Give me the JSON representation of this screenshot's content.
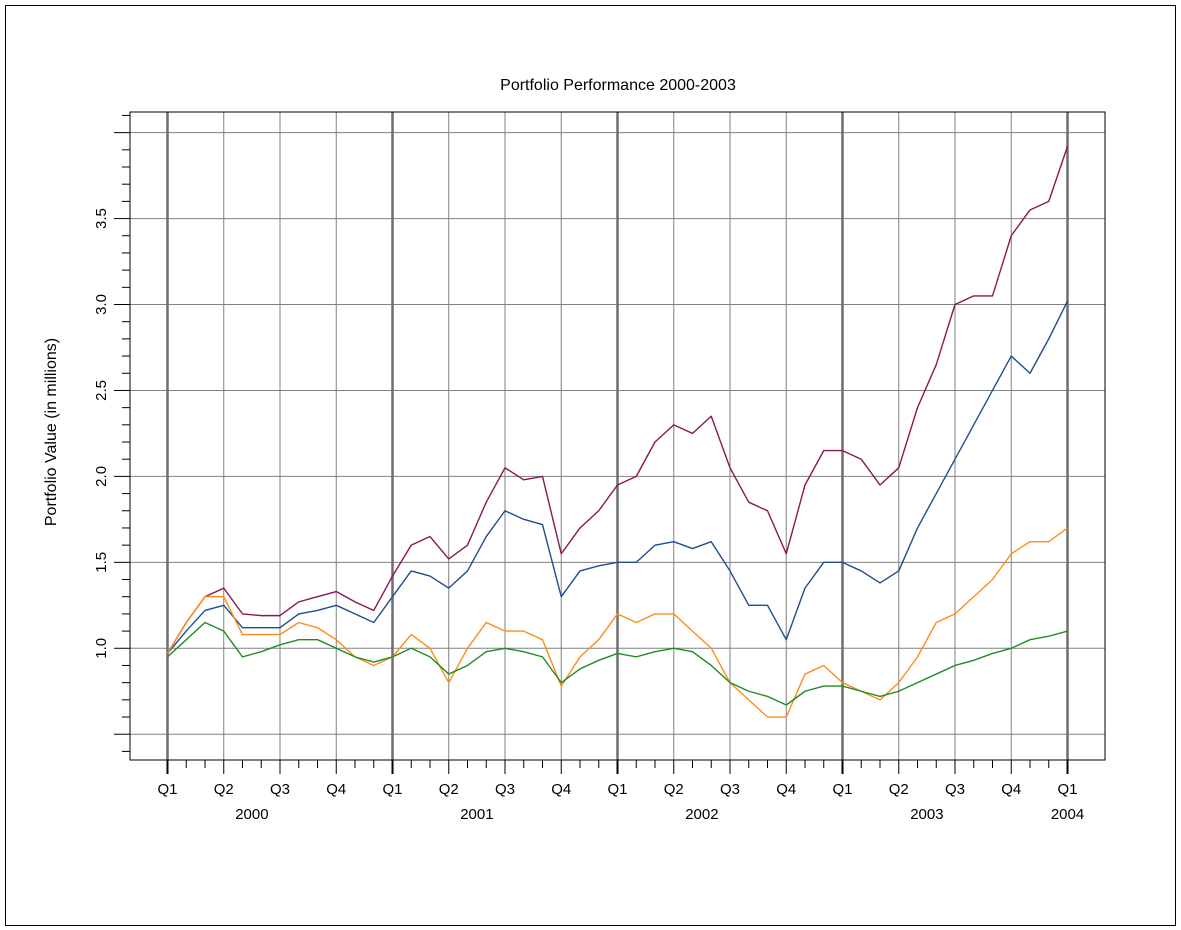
{
  "chart_data": {
    "type": "line",
    "title": "Portfolio Performance 2000-2003",
    "ylabel": "Portfolio Value (in millions)",
    "x": [
      0,
      1,
      2,
      3,
      4,
      5,
      6,
      7,
      8,
      9,
      10,
      11,
      12,
      13,
      14,
      15,
      16,
      17,
      18,
      19,
      20,
      21,
      22,
      23,
      24,
      25,
      26,
      27,
      28,
      29,
      30,
      31,
      32,
      33,
      34,
      35,
      36,
      37,
      38,
      39,
      40,
      41,
      42,
      43,
      44,
      45,
      46,
      47,
      48
    ],
    "xlim": [
      -2,
      50
    ],
    "xticks": [
      {
        "value": 0,
        "label": "Q1"
      },
      {
        "value": 3,
        "label": "Q2"
      },
      {
        "value": 6,
        "label": "Q3"
      },
      {
        "value": 9,
        "label": "Q4"
      },
      {
        "value": 12,
        "label": "Q1"
      },
      {
        "value": 15,
        "label": "Q2"
      },
      {
        "value": 18,
        "label": "Q3"
      },
      {
        "value": 21,
        "label": "Q4"
      },
      {
        "value": 24,
        "label": "Q1"
      },
      {
        "value": 27,
        "label": "Q2"
      },
      {
        "value": 30,
        "label": "Q3"
      },
      {
        "value": 33,
        "label": "Q4"
      },
      {
        "value": 36,
        "label": "Q1"
      },
      {
        "value": 39,
        "label": "Q2"
      },
      {
        "value": 42,
        "label": "Q3"
      },
      {
        "value": 45,
        "label": "Q4"
      },
      {
        "value": 48,
        "label": "Q1"
      }
    ],
    "year_labels": [
      "2000",
      "2001",
      "2002",
      "2003",
      "2004"
    ],
    "xminorticks": [
      1,
      2,
      4,
      5,
      7,
      8,
      10,
      11,
      13,
      14,
      16,
      17,
      19,
      20,
      22,
      23,
      25,
      26,
      28,
      29,
      31,
      32,
      34,
      35,
      37,
      38,
      40,
      41,
      43,
      44,
      46,
      47
    ],
    "ylim": [
      0.35,
      4.12
    ],
    "yticks": [
      {
        "value": 0.5,
        "label": null
      },
      {
        "value": 1,
        "label": "1.0"
      },
      {
        "value": 1.5,
        "label": "1.5"
      },
      {
        "value": 2,
        "label": "2.0"
      },
      {
        "value": 2.5,
        "label": "2.5"
      },
      {
        "value": 3,
        "label": "3.0"
      },
      {
        "value": 3.5,
        "label": "3.5"
      },
      {
        "value": 4,
        "label": null
      }
    ],
    "yminorticks": [
      0.4,
      0.6,
      0.7,
      0.8,
      0.9,
      1.1,
      1.2,
      1.3,
      1.4,
      1.6,
      1.7,
      1.8,
      1.9,
      2.1,
      2.2,
      2.3,
      2.4,
      2.6,
      2.7,
      2.8,
      2.9,
      3.1,
      3.2,
      3.3,
      3.4,
      3.6,
      3.7,
      3.8,
      3.9,
      4.1
    ],
    "grid": true,
    "series": [
      {
        "color": "#8b1650",
        "values": [
          0.97,
          1.15,
          1.3,
          1.35,
          1.2,
          1.19,
          1.19,
          1.27,
          1.3,
          1.33,
          1.27,
          1.22,
          1.42,
          1.6,
          1.65,
          1.52,
          1.6,
          1.85,
          2.05,
          1.98,
          2.0,
          1.55,
          1.7,
          1.8,
          1.95,
          2.0,
          2.2,
          2.3,
          2.25,
          2.35,
          2.05,
          1.85,
          1.8,
          1.55,
          1.95,
          2.15,
          2.15,
          2.1,
          1.95,
          2.05,
          2.4,
          2.65,
          3.0,
          3.05,
          3.05,
          3.4,
          3.55,
          3.6,
          3.92
        ]
      },
      {
        "color": "#1f4e8c",
        "values": [
          0.97,
          1.1,
          1.22,
          1.25,
          1.12,
          1.12,
          1.12,
          1.2,
          1.22,
          1.25,
          1.2,
          1.15,
          1.3,
          1.45,
          1.42,
          1.35,
          1.45,
          1.65,
          1.8,
          1.75,
          1.72,
          1.3,
          1.45,
          1.48,
          1.5,
          1.5,
          1.6,
          1.62,
          1.58,
          1.62,
          1.45,
          1.25,
          1.25,
          1.05,
          1.35,
          1.5,
          1.5,
          1.45,
          1.38,
          1.45,
          1.7,
          1.9,
          2.1,
          2.3,
          2.5,
          2.7,
          2.6,
          2.8,
          3.02
        ]
      },
      {
        "color": "#ff8c1a",
        "values": [
          0.97,
          1.15,
          1.3,
          1.3,
          1.08,
          1.08,
          1.08,
          1.15,
          1.12,
          1.05,
          0.95,
          0.9,
          0.95,
          1.08,
          1.0,
          0.8,
          1.0,
          1.15,
          1.1,
          1.1,
          1.05,
          0.78,
          0.95,
          1.05,
          1.2,
          1.15,
          1.2,
          1.2,
          1.1,
          1.0,
          0.8,
          0.7,
          0.6,
          0.6,
          0.85,
          0.9,
          0.8,
          0.75,
          0.7,
          0.8,
          0.95,
          1.15,
          1.2,
          1.3,
          1.4,
          1.55,
          1.62,
          1.62,
          1.7
        ]
      },
      {
        "color": "#228b22",
        "values": [
          0.95,
          1.05,
          1.15,
          1.1,
          0.95,
          0.98,
          1.02,
          1.05,
          1.05,
          1.0,
          0.95,
          0.92,
          0.95,
          1.0,
          0.95,
          0.85,
          0.9,
          0.98,
          1.0,
          0.98,
          0.95,
          0.8,
          0.88,
          0.93,
          0.97,
          0.95,
          0.98,
          1.0,
          0.98,
          0.9,
          0.8,
          0.75,
          0.72,
          0.67,
          0.75,
          0.78,
          0.78,
          0.75,
          0.72,
          0.75,
          0.8,
          0.85,
          0.9,
          0.93,
          0.97,
          1.0,
          1.05,
          1.07,
          1.1
        ]
      }
    ]
  }
}
